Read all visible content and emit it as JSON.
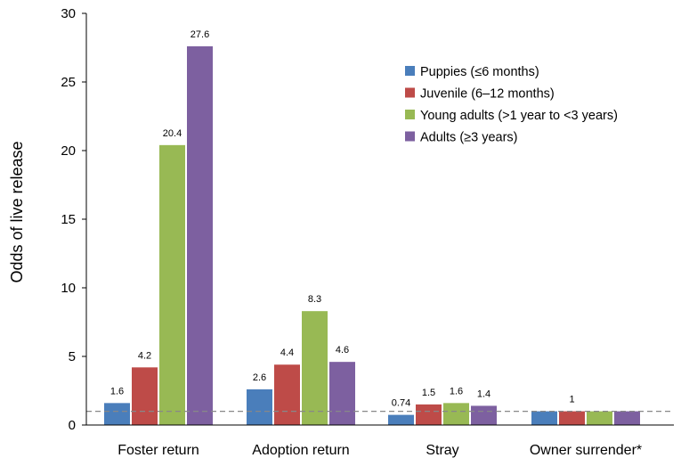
{
  "chart_data": {
    "type": "bar",
    "title": "",
    "xlabel": "",
    "ylabel": "Odds of live release",
    "ylim": [
      0,
      30
    ],
    "yticks": [
      0,
      5,
      10,
      15,
      20,
      25,
      30
    ],
    "categories": [
      "Foster return",
      "Adoption return",
      "Stray",
      "Owner surrender*"
    ],
    "series": [
      {
        "name": "Puppies  (≤6 months)",
        "color": "#4a7ebb",
        "values": [
          1.6,
          2.6,
          0.74,
          1
        ],
        "labels": [
          "1.6",
          "2.6",
          "0.74",
          ""
        ]
      },
      {
        "name": "Juvenile (6–12 months)",
        "color": "#be4b48",
        "values": [
          4.2,
          4.4,
          1.5,
          1
        ],
        "labels": [
          "4.2",
          "4.4",
          "1.5",
          "1"
        ]
      },
      {
        "name": "Young adults  (>1 year to <3 years)",
        "color": "#98b954",
        "values": [
          20.4,
          8.3,
          1.6,
          1
        ],
        "labels": [
          "20.4",
          "8.3",
          "1.6",
          ""
        ]
      },
      {
        "name": "Adults  (≥3 years)",
        "color": "#7d60a0",
        "values": [
          27.6,
          4.6,
          1.4,
          1
        ],
        "labels": [
          "27.6",
          "4.6",
          "1.4",
          ""
        ]
      }
    ],
    "reference_line": {
      "value": 1,
      "style": "dashed",
      "color": "#888888"
    },
    "grid": false,
    "legend_position": "top-right"
  }
}
